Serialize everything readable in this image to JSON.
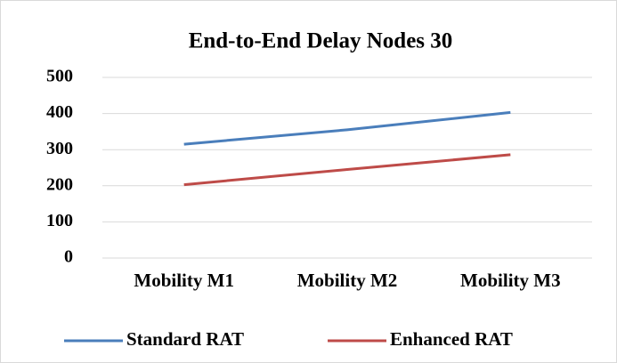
{
  "chart_data": {
    "type": "line",
    "title": "End-to-End Delay Nodes 30",
    "categories": [
      "Mobility M1",
      "Mobility M2",
      "Mobility M3"
    ],
    "series": [
      {
        "name": "Standard RAT",
        "color": "#4a7ebb",
        "values": [
          315,
          355,
          403
        ]
      },
      {
        "name": "Enhanced RAT",
        "color": "#be4b48",
        "values": [
          203,
          245,
          286
        ]
      }
    ],
    "ylim": [
      0,
      500
    ],
    "yticks": [
      0,
      100,
      200,
      300,
      400,
      500
    ],
    "grid": true,
    "legend": "bottom"
  }
}
